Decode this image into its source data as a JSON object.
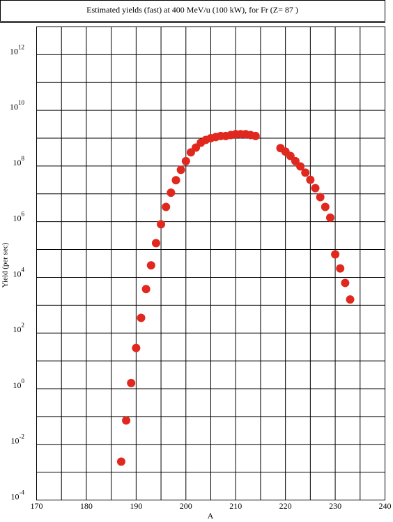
{
  "chart_data": {
    "type": "scatter",
    "title": "Estimated yields (fast) at 400 MeV/u (100 kW), for Fr (Z= 87 )",
    "x_label": "A",
    "y_label": "Yield (per sec)",
    "log_y": true,
    "grid": true,
    "color": "#e0281e",
    "xlim": [
      170,
      240
    ],
    "ylim": [
      0.0001,
      10000000000000
    ],
    "xticks": [
      170,
      180,
      190,
      200,
      210,
      220,
      230,
      240
    ],
    "xminor": [
      175,
      185,
      195,
      205,
      215,
      225,
      235
    ],
    "yticks": [
      {
        "value": 0.0001,
        "label": "10",
        "sup": "-4"
      },
      {
        "value": 0.01,
        "label": "10",
        "sup": "-2"
      },
      {
        "value": 1,
        "label": "10",
        "sup": "0"
      },
      {
        "value": 100,
        "label": "10",
        "sup": "2"
      },
      {
        "value": 10000,
        "label": "10",
        "sup": "4"
      },
      {
        "value": 1000000,
        "label": "10",
        "sup": "6"
      },
      {
        "value": 100000000,
        "label": "10",
        "sup": "8"
      },
      {
        "value": 10000000000,
        "label": "10",
        "sup": "10"
      },
      {
        "value": 1000000000000,
        "label": "10",
        "sup": "12"
      }
    ],
    "yminor": [
      0.001,
      0.1,
      10,
      1000,
      100000,
      10000000,
      1000000000,
      100000000000
    ],
    "x": [
      187,
      188,
      189,
      190,
      191,
      192,
      193,
      194,
      195,
      196,
      197,
      198,
      199,
      200,
      201,
      202,
      203,
      204,
      205,
      206,
      207,
      208,
      209,
      210,
      211,
      212,
      213,
      214,
      219,
      220,
      221,
      222,
      223,
      224,
      225,
      226,
      227,
      228,
      229,
      230,
      231,
      232,
      233
    ],
    "values": [
      0.0024,
      0.072,
      1.6,
      29,
      350,
      3800,
      27000,
      170000,
      810000,
      3400000,
      11000000,
      31000000,
      73000000,
      150000000,
      310000000,
      460000000,
      690000000,
      870000000,
      1000000000,
      1100000000,
      1200000000,
      1200000000,
      1300000000,
      1400000000,
      1400000000,
      1400000000,
      1300000000,
      1200000000,
      440000000,
      330000000,
      230000000,
      150000000,
      97000000,
      58000000,
      32000000,
      16000000,
      7600000,
      3400000,
      1400000,
      67000,
      21000,
      6300,
      1600
    ]
  }
}
